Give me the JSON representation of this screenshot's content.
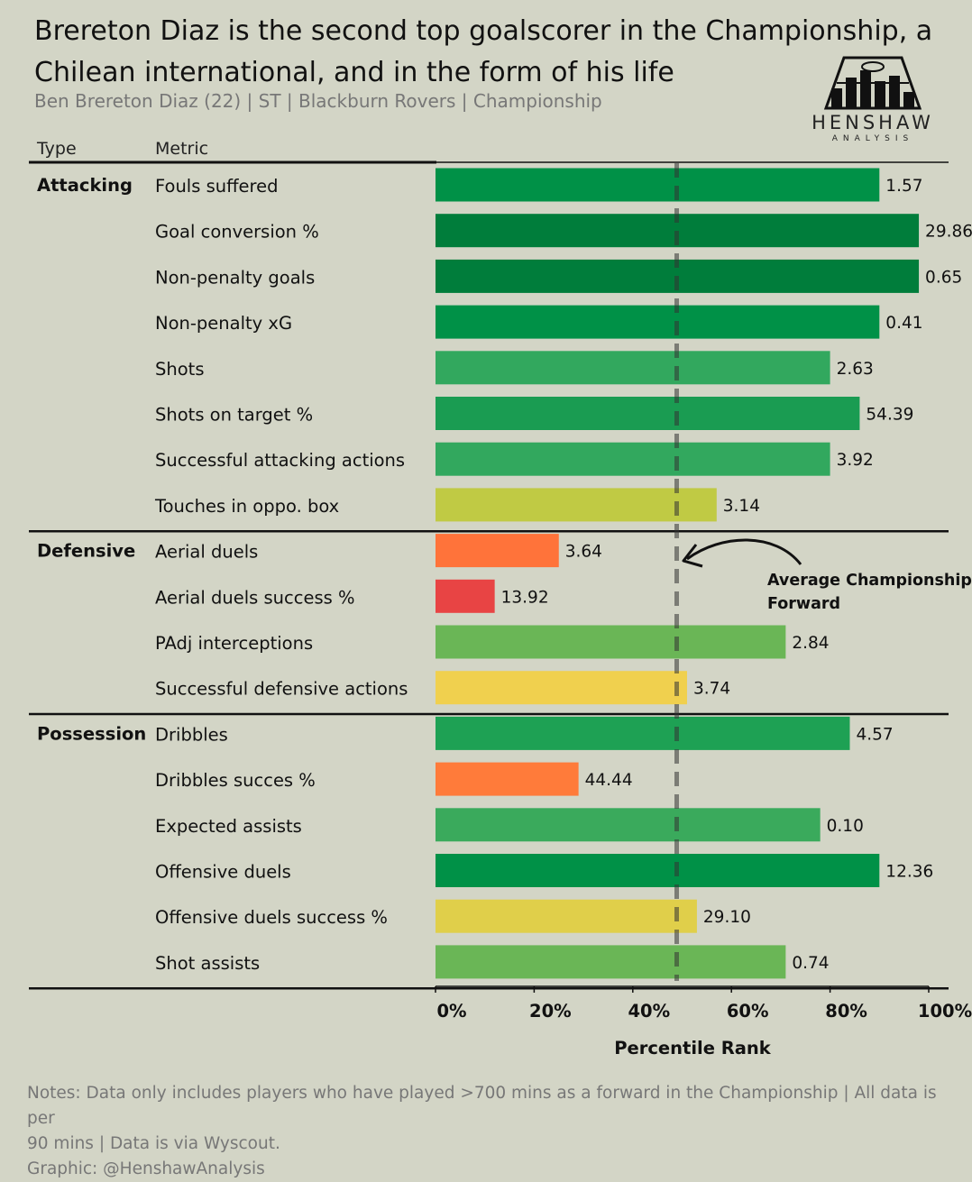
{
  "title": "Brereton Diaz is the second top goalscorer in the Championship, a Chilean international, and in the form of his life",
  "subtitle": "Ben Brereton Diaz (22) | ST | Blackburn Rovers | Championship",
  "logo": {
    "name": "HENSHAW",
    "sub": "ANALYSIS",
    "icon": "pitch-bars-logo"
  },
  "headers": {
    "type": "Type",
    "metric": "Metric"
  },
  "annotation": {
    "line1": "Average Championship",
    "line2": "Forward"
  },
  "notes": {
    "line1": "Notes: Data only includes players who have played >700 mins as a forward in the Championship | All data is per",
    "line2": "90 mins | Data is via Wyscout.",
    "line3": "Graphic: @HenshawAnalysis"
  },
  "chart_data": {
    "type": "bar",
    "orientation": "horizontal",
    "xlabel": "Percentile Rank",
    "xlim": [
      0,
      100
    ],
    "xticks": [
      "0%",
      "20%",
      "40%",
      "60%",
      "80%",
      "100%"
    ],
    "reference_line": {
      "value": 50,
      "label": "Average Championship Forward"
    },
    "groups": [
      {
        "name": "Attacking",
        "metrics": [
          {
            "label": "Fouls suffered",
            "percentile": 90,
            "value_label": "1.57",
            "color": "#009147"
          },
          {
            "label": "Goal conversion %",
            "percentile": 98,
            "value_label": "29.86",
            "color": "#007d3b"
          },
          {
            "label": "Non-penalty goals",
            "percentile": 98,
            "value_label": "0.65",
            "color": "#007d3b"
          },
          {
            "label": "Non-penalty xG",
            "percentile": 90,
            "value_label": "0.41",
            "color": "#009147"
          },
          {
            "label": "Shots",
            "percentile": 80,
            "value_label": "2.63",
            "color": "#32a85e"
          },
          {
            "label": "Shots on target %",
            "percentile": 86,
            "value_label": "54.39",
            "color": "#1a9c52"
          },
          {
            "label": "Successful attacking actions",
            "percentile": 80,
            "value_label": "3.92",
            "color": "#32a85e"
          },
          {
            "label": "Touches in oppo. box",
            "percentile": 57,
            "value_label": "3.14",
            "color": "#c0ca44"
          }
        ]
      },
      {
        "name": "Defensive",
        "metrics": [
          {
            "label": "Aerial duels",
            "percentile": 25,
            "value_label": "3.64",
            "color": "#ff733a"
          },
          {
            "label": "Aerial duels success %",
            "percentile": 12,
            "value_label": "13.92",
            "color": "#e84444"
          },
          {
            "label": "PAdj interceptions",
            "percentile": 71,
            "value_label": "2.84",
            "color": "#6ab656"
          },
          {
            "label": "Successful defensive actions",
            "percentile": 51,
            "value_label": "3.74",
            "color": "#f0d04e"
          }
        ]
      },
      {
        "name": "Possession",
        "metrics": [
          {
            "label": "Dribbles",
            "percentile": 84,
            "value_label": "4.57",
            "color": "#1ea154"
          },
          {
            "label": "Dribbles succes %",
            "percentile": 29,
            "value_label": "44.44",
            "color": "#ff7b3a"
          },
          {
            "label": "Expected assists",
            "percentile": 78,
            "value_label": "0.10",
            "color": "#3aaa5c"
          },
          {
            "label": "Offensive duels",
            "percentile": 90,
            "value_label": "12.36",
            "color": "#009147"
          },
          {
            "label": "Offensive duels success %",
            "percentile": 53,
            "value_label": "29.10",
            "color": "#e0cf4a"
          },
          {
            "label": "Shot assists",
            "percentile": 71,
            "value_label": "0.74",
            "color": "#6ab656"
          }
        ]
      }
    ]
  }
}
